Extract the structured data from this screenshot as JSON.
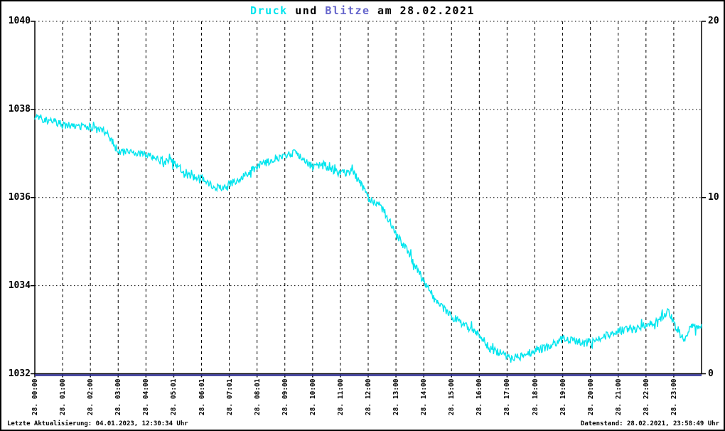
{
  "page": {
    "background": "#ffffff",
    "border_color": "#000000"
  },
  "title": {
    "full": "Druck und Blitze am 28.02.2021",
    "parts": [
      {
        "text": "Druck",
        "color": "#00e5ee"
      },
      {
        "text": " und ",
        "color": "#000000"
      },
      {
        "text": "Blitze",
        "color": "#6666cc"
      },
      {
        "text": " am 28.02.2021",
        "color": "#000000"
      }
    ]
  },
  "footer": {
    "last_update": "Letzte Aktualisierung: 04.01.2023, 12:30:34 Uhr",
    "data_status": "Datenstand: 28.02.2021, 23:58:49 Uhr"
  },
  "chart_data": {
    "type": "line",
    "title": "Druck und Blitze am 28.02.2021",
    "x": {
      "unit": "time",
      "range_hours": [
        0,
        24
      ],
      "tick_hours": [
        0,
        1,
        2,
        3,
        4,
        5,
        6,
        7,
        8,
        9,
        10,
        11,
        12,
        13,
        14,
        15,
        16,
        17,
        18,
        19,
        20,
        21,
        22,
        23
      ],
      "tick_labels": [
        "28. 00:00",
        "28. 01:00",
        "28. 02:00",
        "28. 03:00",
        "28. 04:00",
        "28. 05:01",
        "28. 06:01",
        "28. 07:01",
        "28. 08:01",
        "28. 09:00",
        "28. 10:00",
        "28. 11:00",
        "28. 12:00",
        "28. 13:00",
        "28. 14:00",
        "28. 15:00",
        "28. 16:00",
        "28. 17:00",
        "28. 18:00",
        "28. 19:00",
        "28. 20:00",
        "28. 21:00",
        "28. 22:00",
        "28. 23:00"
      ]
    },
    "y_left": {
      "name": "Druck",
      "range": [
        1032,
        1040
      ],
      "tick_values": [
        1040,
        1038,
        1036,
        1034,
        1032
      ]
    },
    "y_right": {
      "name": "Blitze",
      "range": [
        0,
        20
      ],
      "tick_values": [
        20,
        10,
        0
      ]
    },
    "grid": {
      "horizontal_style": "dotted",
      "vertical_style": "dashed",
      "color": "#000000"
    },
    "series": [
      {
        "name": "Druck",
        "axis": "left",
        "color": "#00e5ee",
        "style": "noisy-line",
        "noise_amplitude": 0.09,
        "points": {
          "hours": [
            0,
            0.5,
            1,
            1.5,
            2,
            2.5,
            3,
            3.5,
            4,
            4.4,
            5,
            5.5,
            6,
            6.5,
            7,
            7.5,
            8,
            8.5,
            9,
            9.4,
            9.7,
            10,
            10.4,
            11,
            11.4,
            11.7,
            12,
            12.4,
            12.7,
            13,
            13.5,
            14,
            14.5,
            15,
            15.5,
            16,
            16.4,
            17,
            17.3,
            18,
            18.5,
            19,
            19.5,
            20,
            20.5,
            21,
            21.5,
            22,
            22.5,
            22.8,
            23.1,
            23.4,
            23.6,
            24
          ],
          "values": [
            1037.85,
            1037.74,
            1037.66,
            1037.62,
            1037.6,
            1037.5,
            1037.05,
            1037.0,
            1037.0,
            1036.85,
            1036.8,
            1036.5,
            1036.45,
            1036.2,
            1036.3,
            1036.5,
            1036.7,
            1036.85,
            1036.97,
            1037.02,
            1036.9,
            1036.66,
            1036.75,
            1036.55,
            1036.6,
            1036.35,
            1036.0,
            1035.85,
            1035.55,
            1035.15,
            1034.7,
            1034.1,
            1033.6,
            1033.3,
            1033.1,
            1032.9,
            1032.55,
            1032.42,
            1032.35,
            1032.52,
            1032.6,
            1032.8,
            1032.72,
            1032.72,
            1032.85,
            1032.98,
            1033.0,
            1033.1,
            1033.25,
            1033.42,
            1033.05,
            1032.72,
            1033.05,
            1033.05
          ]
        }
      },
      {
        "name": "Blitze",
        "axis": "right",
        "color": "#333399",
        "style": "flat-line",
        "constant_value": 0
      }
    ]
  }
}
